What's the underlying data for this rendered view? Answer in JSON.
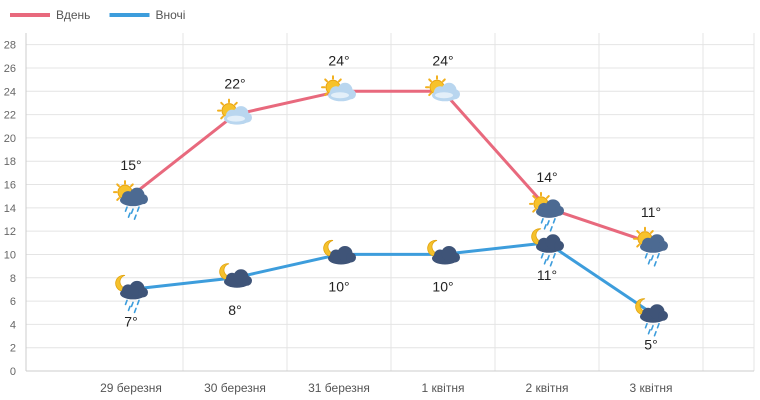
{
  "chart_data": {
    "type": "line",
    "categories": [
      "29 березня",
      "30 березня",
      "31 березня",
      "1 квітня",
      "2 квітня",
      "3 квітня"
    ],
    "series": [
      {
        "name": "Вдень",
        "color": "#e8697d",
        "values": [
          15,
          22,
          24,
          24,
          14,
          11
        ],
        "labels": [
          "15°",
          "22°",
          "24°",
          "24°",
          "14°",
          "11°"
        ],
        "label_position": "above",
        "icons": [
          "sun-cloud-rain-icon",
          "sun-cloud-icon",
          "sun-cloud-icon",
          "sun-cloud-icon",
          "sun-cloud-rain-icon",
          "sun-cloud-rain-icon"
        ]
      },
      {
        "name": "Вночі",
        "color": "#3d9ddc",
        "values": [
          7,
          8,
          10,
          10,
          11,
          5
        ],
        "labels": [
          "7°",
          "8°",
          "10°",
          "10°",
          "11°",
          "5°"
        ],
        "label_position": "below",
        "icons": [
          "moon-cloud-rain-icon",
          "moon-cloud-icon",
          "moon-cloud-icon",
          "moon-cloud-icon",
          "moon-cloud-rain-icon",
          "moon-cloud-rain-icon"
        ]
      }
    ],
    "yticks": [
      0,
      2,
      4,
      6,
      8,
      10,
      12,
      14,
      16,
      18,
      20,
      22,
      24,
      26,
      28
    ],
    "ylim": [
      0,
      29
    ],
    "grid": true,
    "legend_position": "top-left",
    "title": "",
    "xlabel": "",
    "ylabel": ""
  }
}
